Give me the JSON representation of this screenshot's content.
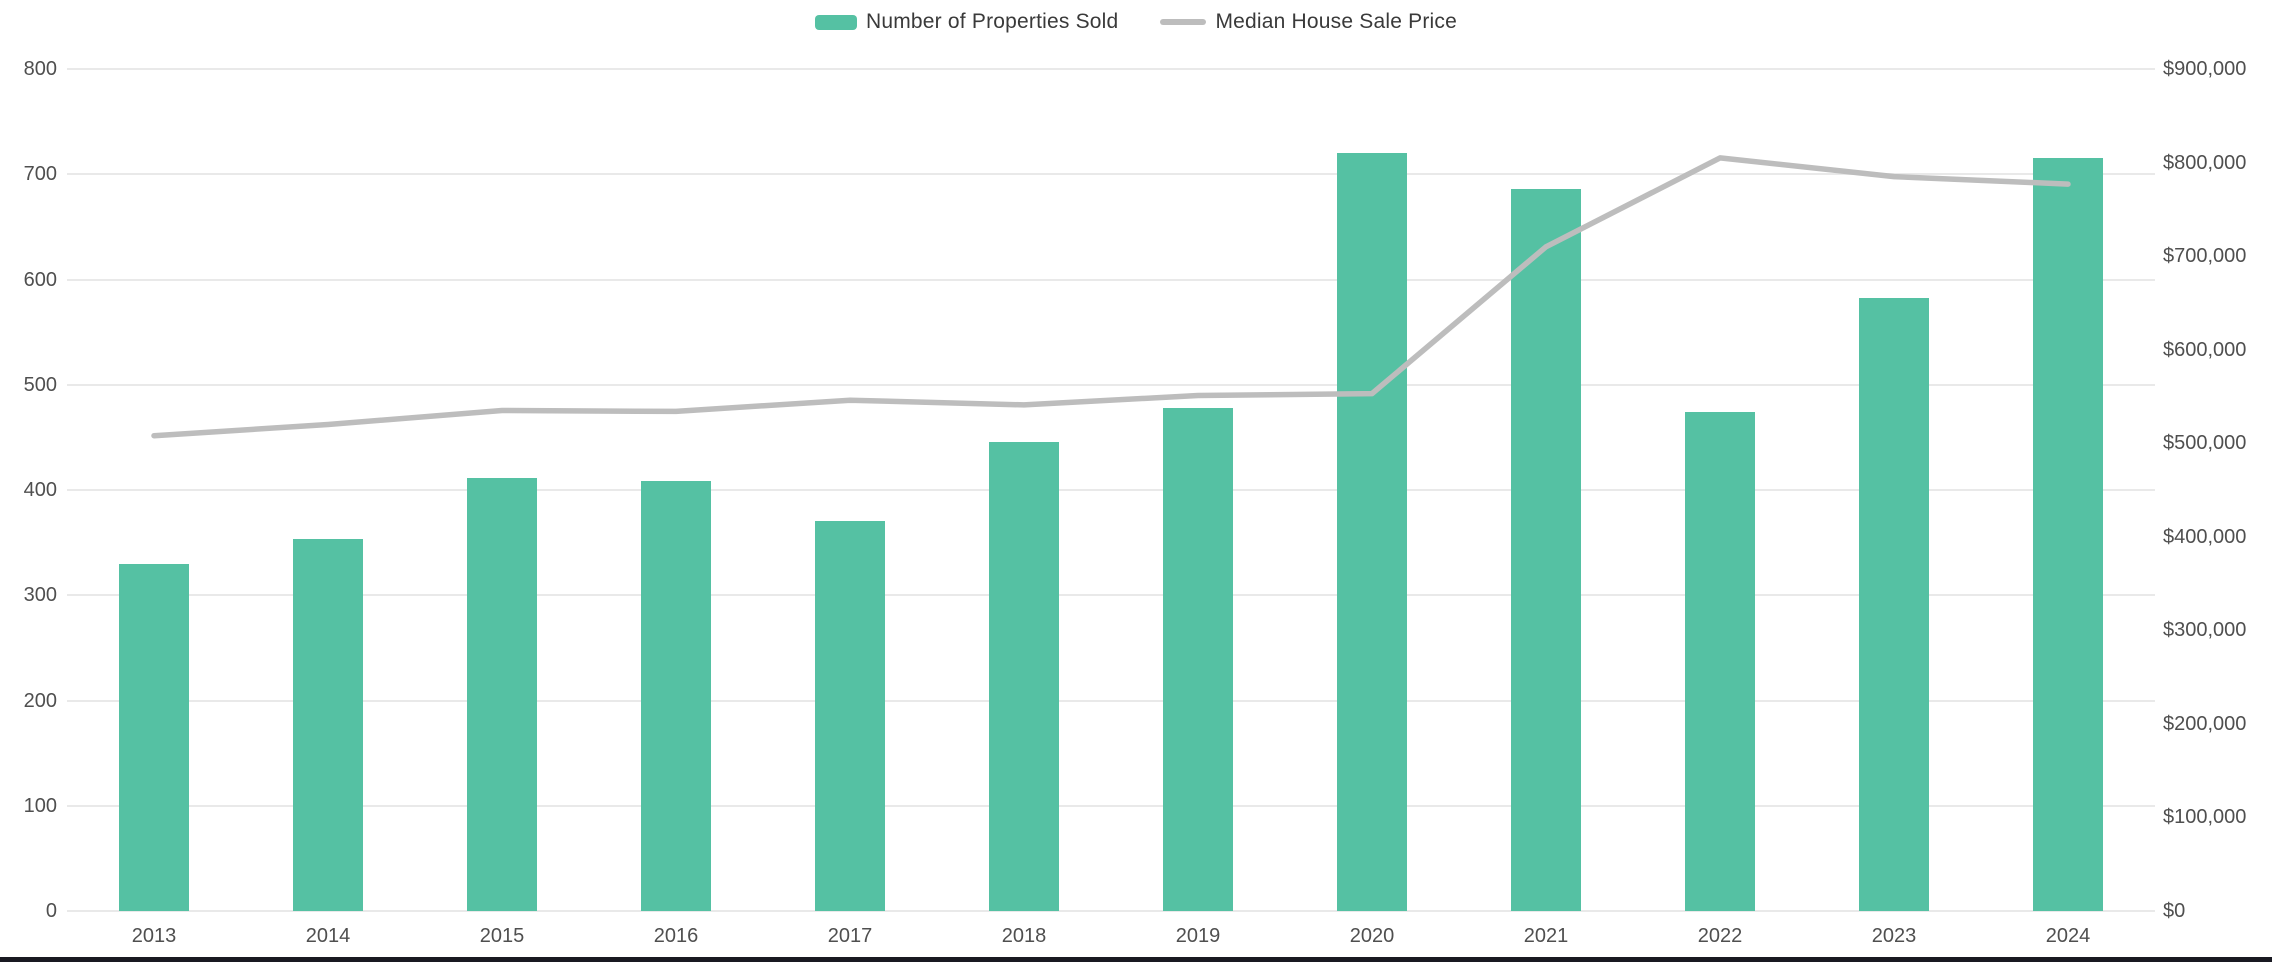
{
  "chart_data": {
    "type": "bar",
    "subtype": "combo-bar-line-dual-axis",
    "categories": [
      "2013",
      "2014",
      "2015",
      "2016",
      "2017",
      "2018",
      "2019",
      "2020",
      "2021",
      "2022",
      "2023",
      "2024"
    ],
    "series": [
      {
        "name": "Number of Properties Sold",
        "type": "bar",
        "axis": "left",
        "color": "#55c1a3",
        "values": [
          330,
          353,
          411,
          409,
          371,
          446,
          478,
          720,
          686,
          474,
          582,
          715
        ]
      },
      {
        "name": "Median House Sale Price",
        "type": "line",
        "axis": "right",
        "color": "#bdbdbd",
        "values": [
          508000,
          520000,
          535000,
          534000,
          546000,
          541000,
          551000,
          553000,
          710000,
          805000,
          785000,
          777000
        ]
      }
    ],
    "left_axis": {
      "min": 0,
      "max": 800,
      "step": 100,
      "tick_labels": [
        "0",
        "100",
        "200",
        "300",
        "400",
        "500",
        "600",
        "700",
        "800"
      ]
    },
    "right_axis": {
      "min": 0,
      "max": 900000,
      "step": 100000,
      "tick_labels": [
        "$0",
        "$100,000",
        "$200,000",
        "$300,000",
        "$400,000",
        "$500,000",
        "$600,000",
        "$700,000",
        "$800,000",
        "$900,000"
      ]
    },
    "grid": "horizontal-only",
    "legend_position": "top-center",
    "title": "",
    "xlabel": "",
    "ylabel": ""
  },
  "legend": {
    "items": [
      {
        "label": "Number of Properties Sold",
        "swatch": "bar-swatch"
      },
      {
        "label": "Median House Sale Price",
        "swatch": "line-swatch"
      }
    ]
  },
  "colors": {
    "bar_fill": "#55c1a3",
    "line_stroke": "#bdbdbd",
    "gridline": "#e9e9e9",
    "tick_text": "#4f4f4f",
    "legend_text": "#3a3a3a",
    "background": "#ffffff",
    "bottom_border": "#191921"
  }
}
